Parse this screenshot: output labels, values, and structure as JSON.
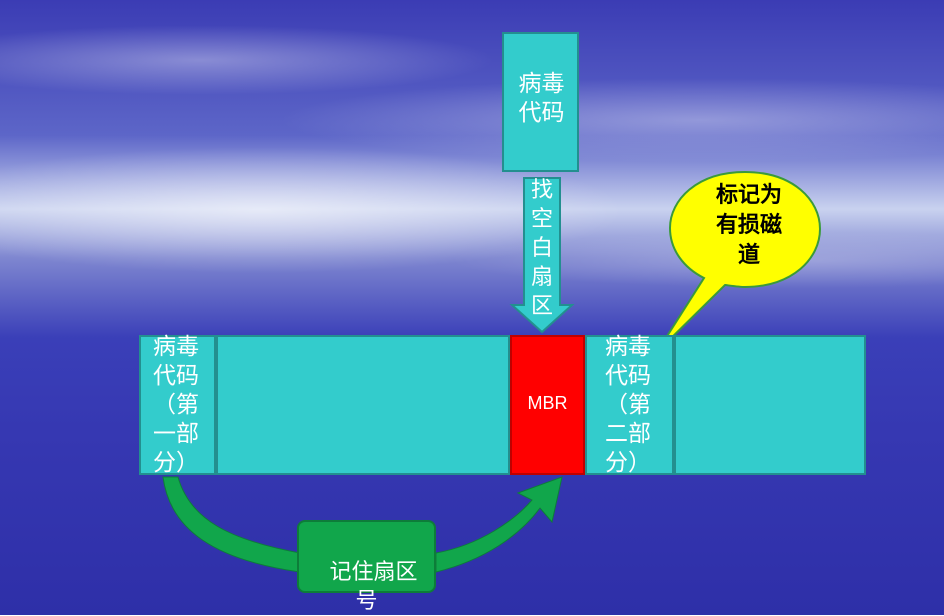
{
  "virus_code_top": "病毒\n代码",
  "arrow_label": "找\n空\n白\n扇\n区",
  "callout": "标记为\n有损磁\n道",
  "segments": {
    "virus_part1": "病毒\n代码\n（第\n一部\n分）",
    "mbr": "MBR",
    "virus_part2": "病毒\n代码\n（第\n二部\n分）"
  },
  "green_label": "记住扇区\n号",
  "colors": {
    "box_fill": "#33cccc",
    "mbr_fill": "#ff0000",
    "callout_fill": "#ffff00",
    "green_fill": "#11a64b"
  }
}
